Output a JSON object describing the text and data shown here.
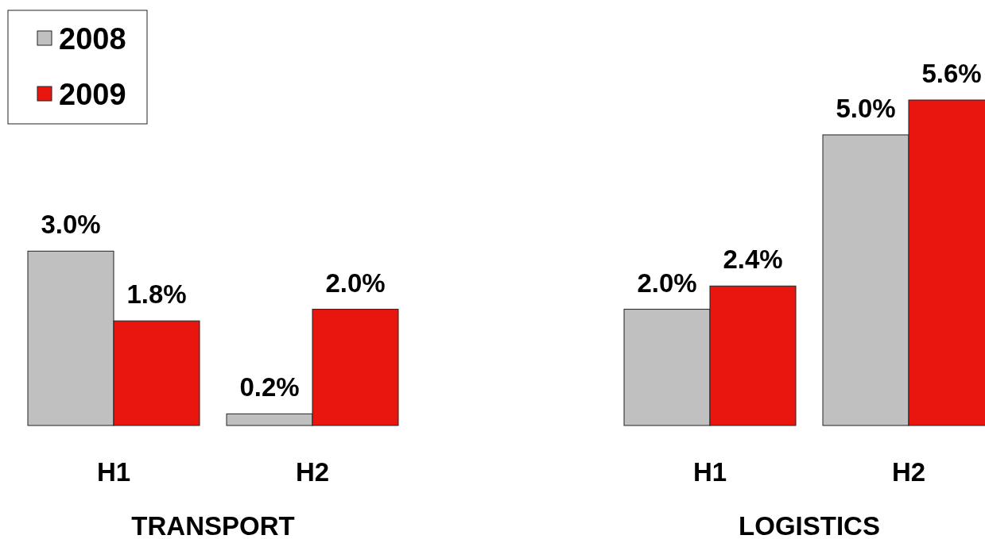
{
  "chart_data": [
    {
      "type": "bar",
      "xlabel": "TRANSPORT",
      "categories": [
        "H1",
        "H2"
      ],
      "legend": "top left",
      "series": [
        {
          "name": "2008",
          "color": "#c0c0c0",
          "values": [
            3.0,
            0.2
          ],
          "value_labels": [
            "3.0%",
            "0.2%"
          ]
        },
        {
          "name": "2009",
          "color": "#e8160f",
          "values": [
            1.8,
            2.0
          ],
          "value_labels": [
            "1.8%",
            "2.0%"
          ]
        }
      ]
    },
    {
      "type": "bar",
      "xlabel": "LOGISTICS",
      "categories": [
        "H1",
        "H2"
      ],
      "series": [
        {
          "color": "#c0c0c0",
          "values": [
            2.0,
            5.0
          ],
          "value_labels": [
            "2.0%",
            "5.0%"
          ]
        },
        {
          "color": "#e8160f",
          "values": [
            2.4,
            5.6
          ],
          "value_labels": [
            "2.4%",
            "5.6%"
          ]
        }
      ]
    }
  ]
}
